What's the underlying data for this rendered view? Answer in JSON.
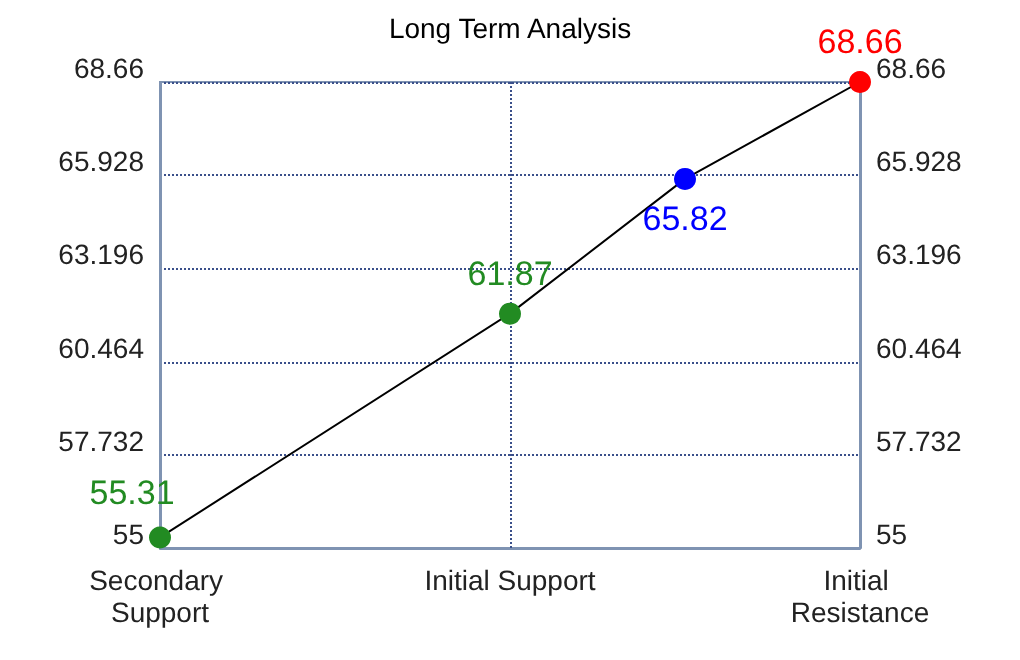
{
  "chart_data": {
    "type": "line",
    "title": "Long Term Analysis",
    "categories": [
      "Secondary Support",
      null,
      "Initial Support",
      null,
      "Initial Resistance"
    ],
    "series": [
      {
        "color": "#000000",
        "colors": [
          "#228b22",
          null,
          "#228b22",
          "#0000ff",
          "#ff0000"
        ],
        "values": [
          55.31,
          null,
          61.87,
          65.82,
          68.66
        ]
      }
    ],
    "ylim": [
      55,
      68.66
    ],
    "yticks": [
      55,
      57.732,
      60.464,
      63.196,
      65.928,
      68.66
    ],
    "y2lim": [
      55,
      68.66
    ],
    "y2ticks": [
      55,
      57.732,
      60.464,
      63.196,
      65.928,
      68.66
    ],
    "grid": true,
    "marker": "circle",
    "line_style": "solid",
    "data_labels": true
  }
}
